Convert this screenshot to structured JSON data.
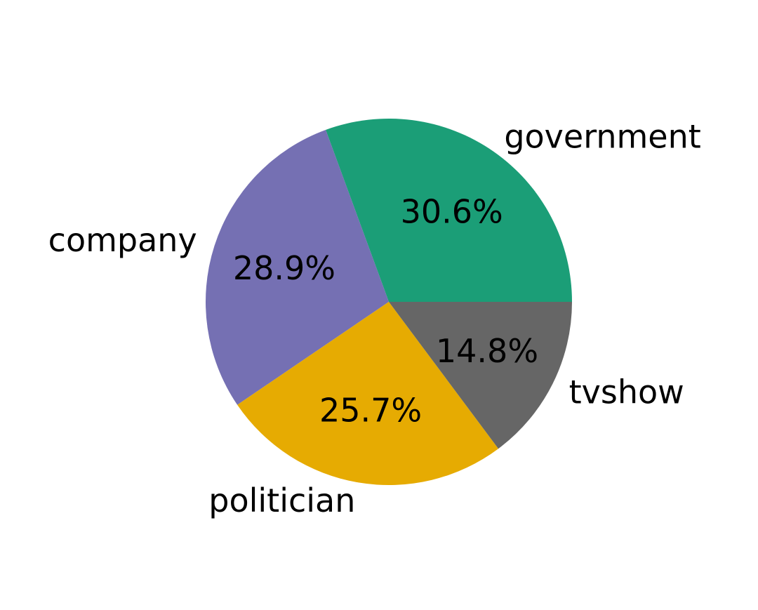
{
  "chart_data": {
    "type": "pie",
    "categories": [
      "government",
      "company",
      "politician",
      "tvshow"
    ],
    "values": [
      30.6,
      28.9,
      25.7,
      14.8
    ],
    "value_labels": [
      "30.6%",
      "28.9%",
      "25.7%",
      "14.8%"
    ],
    "colors": [
      "#1b9e77",
      "#7570b3",
      "#e6ab02",
      "#666666"
    ],
    "title": "",
    "legend": "none"
  }
}
